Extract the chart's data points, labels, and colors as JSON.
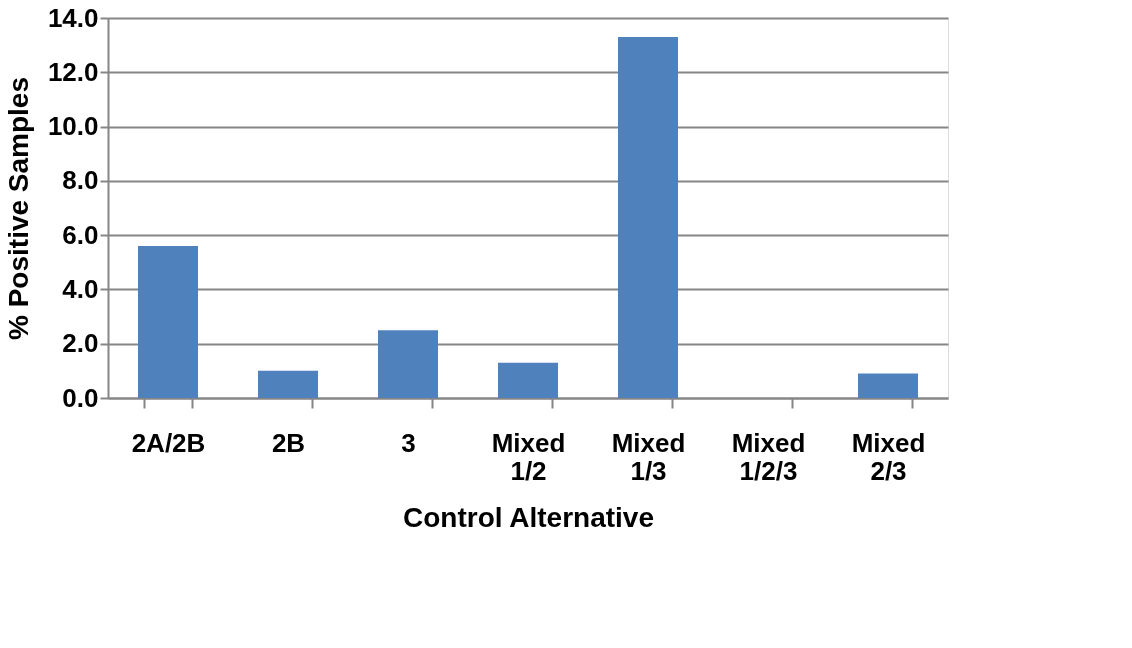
{
  "chart_data": {
    "type": "bar",
    "xlabel": "Control Alternative",
    "ylabel": "% Positive Samples",
    "categories": [
      "2A/2B",
      "2B",
      "3",
      "Mixed 1/2",
      "Mixed 1/3",
      "Mixed 1/2/3",
      "Mixed 2/3"
    ],
    "values": [
      5.6,
      1.0,
      2.5,
      1.3,
      13.3,
      0,
      0.9
    ],
    "color": "#4f81bd",
    "ylim": [
      0,
      14
    ],
    "yticks": [
      {
        "value": 0,
        "label": "0.0"
      },
      {
        "value": 2,
        "label": "2.0"
      },
      {
        "value": 4,
        "label": "4.0"
      },
      {
        "value": 6,
        "label": "6.0"
      },
      {
        "value": 8,
        "label": "8.0"
      },
      {
        "value": 10,
        "label": "10.0"
      },
      {
        "value": 12,
        "label": "12.0"
      },
      {
        "value": 14,
        "label": "14.0"
      }
    ],
    "grid": "y"
  }
}
